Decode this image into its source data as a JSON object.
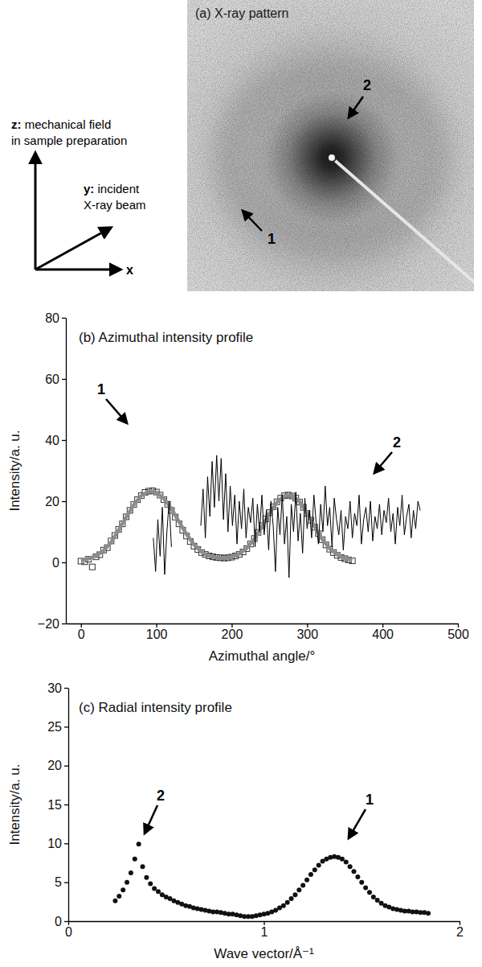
{
  "chart_data": [
    {
      "type": "image",
      "title": "(a) X-ray pattern",
      "annotations": [
        "1",
        "2",
        "z: mechanical field",
        "in sample preparation",
        "y: incident",
        "X-ray beam",
        "x"
      ]
    },
    {
      "type": "scatter",
      "title": "(b) Azimuthal intensity profile",
      "x_label": "Azimuthal angle/°",
      "y_label": "Intensity/a. u.",
      "xlim": [
        -20,
        500
      ],
      "ylim": [
        -20,
        80
      ],
      "xticks": [
        0,
        100,
        200,
        300,
        400,
        500
      ],
      "yticks": [
        {
          "value": -20,
          "label": "−20"
        },
        0,
        20,
        40,
        60,
        80
      ],
      "grid": false,
      "annotations": [
        "1",
        "2"
      ],
      "series": [
        {
          "type": "scatter",
          "marker": "square",
          "color": "#333333",
          "x": [
            0,
            5,
            10,
            15,
            20,
            25,
            30,
            35,
            40,
            45,
            50,
            55,
            60,
            65,
            70,
            75,
            80,
            85,
            90,
            95,
            100,
            105,
            110,
            115,
            120,
            125,
            130,
            135,
            140,
            145,
            150,
            155,
            160,
            165,
            170,
            175,
            180,
            185,
            190,
            195,
            200,
            205,
            210,
            215,
            220,
            225,
            230,
            235,
            240,
            245,
            250,
            255,
            260,
            265,
            270,
            275,
            280,
            285,
            290,
            295,
            300,
            305,
            310,
            315,
            320,
            325,
            330,
            335,
            340,
            345,
            350,
            355,
            360
          ],
          "values": [
            0.4,
            0.2,
            1.0,
            -1.5,
            1.8,
            2.5,
            4.0,
            4.8,
            7.0,
            8.8,
            10.8,
            12.6,
            14.9,
            17.0,
            18.9,
            20.5,
            21.8,
            22.9,
            23.3,
            23.4,
            23.0,
            22.0,
            20.5,
            19.0,
            17.0,
            14.8,
            12.6,
            10.5,
            8.6,
            6.8,
            5.3,
            4.2,
            3.2,
            2.6,
            2.1,
            1.8,
            1.6,
            1.5,
            1.4,
            1.5,
            1.7,
            2.1,
            2.6,
            3.4,
            4.5,
            6.0,
            7.8,
            9.8,
            12.0,
            14.2,
            16.3,
            18.2,
            19.8,
            21.0,
            21.8,
            22.0,
            21.7,
            21.0,
            19.7,
            18.0,
            16.0,
            13.8,
            11.5,
            9.4,
            7.4,
            5.7,
            4.3,
            3.2,
            2.3,
            1.6,
            1.2,
            0.8,
            0.5
          ]
        },
        {
          "type": "line",
          "line_style": "thick",
          "color": "#8c8c8c",
          "x": [
            0,
            10,
            20,
            30,
            40,
            50,
            60,
            70,
            80,
            90,
            100,
            110,
            120,
            130,
            140,
            150,
            160,
            170,
            180,
            190,
            200,
            210,
            220,
            230,
            240,
            250,
            260,
            270,
            280,
            290,
            300,
            310,
            320,
            330,
            340,
            350,
            360
          ],
          "values": [
            0.8,
            1.2,
            2.1,
            3.8,
            6.6,
            10.5,
            14.8,
            18.8,
            21.8,
            23.2,
            22.9,
            20.9,
            17.5,
            13.3,
            9.2,
            5.8,
            3.4,
            2.0,
            1.5,
            1.4,
            1.8,
            2.8,
            4.7,
            7.6,
            11.6,
            16.0,
            19.7,
            21.8,
            21.9,
            19.8,
            16.1,
            11.7,
            7.6,
            4.5,
            2.5,
            1.4,
            0.9
          ]
        },
        {
          "type": "line",
          "line_style": "solid",
          "color": "#000000",
          "x": [
            96,
            99,
            102,
            105,
            108,
            111,
            114,
            117,
            120,
            140,
            159,
            162,
            165,
            168,
            171,
            174,
            177,
            180,
            183,
            186,
            189,
            192,
            195,
            198,
            201,
            204,
            207,
            210,
            213,
            216,
            219,
            222,
            225,
            228,
            231,
            234,
            237,
            240,
            243,
            246,
            249,
            252,
            255,
            258,
            261,
            264,
            267,
            270,
            273,
            276,
            279,
            282,
            285,
            288,
            291,
            294,
            297,
            300,
            303,
            306,
            309,
            312,
            315,
            318,
            321,
            324,
            327,
            330,
            333,
            336,
            339,
            342,
            345,
            348,
            351,
            354,
            357,
            360,
            363,
            366,
            369,
            372,
            375,
            378,
            381,
            384,
            387,
            390,
            393,
            396,
            399,
            402,
            405,
            408,
            411,
            414,
            417,
            420,
            423,
            426,
            429,
            432,
            435,
            438,
            441,
            444,
            447,
            450
          ],
          "values": [
            8,
            -3,
            14,
            2,
            18,
            -4,
            10,
            20,
            5,
            null,
            12,
            24,
            8,
            28,
            15,
            33,
            18,
            35,
            20,
            34,
            14,
            29,
            10,
            25,
            12,
            22,
            6,
            20,
            11,
            24,
            8,
            18,
            13,
            21,
            5,
            19,
            10,
            22,
            9,
            17,
            4,
            20,
            12,
            -3,
            18,
            9,
            22,
            6,
            15,
            -5,
            19,
            10,
            23,
            7,
            16,
            3,
            21,
            11,
            17,
            8,
            22,
            13,
            6,
            19,
            10,
            25,
            12,
            18,
            5,
            21,
            14,
            9,
            17,
            4,
            15,
            11,
            20,
            8,
            16,
            12,
            22,
            6,
            14,
            18,
            10,
            20,
            7,
            15,
            11,
            19,
            9,
            17,
            13,
            21,
            10,
            16,
            6,
            18,
            12,
            22,
            9,
            15,
            19,
            8,
            17,
            11,
            20,
            17
          ]
        }
      ]
    },
    {
      "type": "scatter",
      "title": "(c) Radial intensity profile",
      "x_label": "Wave vector/Å⁻¹",
      "y_label": "Intensity/a. u.",
      "xlim": [
        0,
        2
      ],
      "ylim": [
        0,
        30
      ],
      "xticks": [
        0,
        1,
        2
      ],
      "yticks": [
        0,
        5,
        10,
        15,
        20,
        25,
        30
      ],
      "grid": false,
      "annotations": [
        "1",
        "2"
      ],
      "series": [
        {
          "type": "scatter",
          "marker": "circle",
          "color": "#111111",
          "x": [
            0.24,
            0.26,
            0.28,
            0.3,
            0.32,
            0.34,
            0.36,
            0.38,
            0.4,
            0.42,
            0.44,
            0.46,
            0.48,
            0.5,
            0.52,
            0.54,
            0.56,
            0.58,
            0.6,
            0.62,
            0.64,
            0.66,
            0.68,
            0.7,
            0.72,
            0.74,
            0.76,
            0.78,
            0.8,
            0.82,
            0.84,
            0.86,
            0.88,
            0.9,
            0.92,
            0.94,
            0.96,
            0.98,
            1,
            1.02,
            1.04,
            1.06,
            1.08,
            1.1,
            1.12,
            1.14,
            1.16,
            1.18,
            1.2,
            1.22,
            1.24,
            1.26,
            1.28,
            1.3,
            1.32,
            1.34,
            1.36,
            1.38,
            1.4,
            1.42,
            1.44,
            1.46,
            1.48,
            1.5,
            1.52,
            1.54,
            1.56,
            1.58,
            1.6,
            1.62,
            1.64,
            1.66,
            1.68,
            1.7,
            1.72,
            1.74,
            1.76,
            1.78,
            1.8,
            1.82,
            1.84
          ],
          "values": [
            2.6,
            3.2,
            4.0,
            5.0,
            6.2,
            8.0,
            9.9,
            7.0,
            5.6,
            4.8,
            4.2,
            3.8,
            3.4,
            3.1,
            2.9,
            2.6,
            2.4,
            2.2,
            2.0,
            1.9,
            1.7,
            1.6,
            1.5,
            1.4,
            1.3,
            1.2,
            1.2,
            1.1,
            1.0,
            0.9,
            0.9,
            0.8,
            0.7,
            0.6,
            0.6,
            0.6,
            0.7,
            0.8,
            0.9,
            1.0,
            1.2,
            1.4,
            1.7,
            2.0,
            2.4,
            2.9,
            3.4,
            4.0,
            4.6,
            5.3,
            6.0,
            6.6,
            7.2,
            7.7,
            8.0,
            8.2,
            8.3,
            8.2,
            8.0,
            7.6,
            7.0,
            6.4,
            5.7,
            5.0,
            4.3,
            3.7,
            3.1,
            2.7,
            2.3,
            2.0,
            1.8,
            1.6,
            1.5,
            1.4,
            1.3,
            1.3,
            1.2,
            1.2,
            1.1,
            1.1,
            1.0
          ]
        }
      ]
    }
  ]
}
